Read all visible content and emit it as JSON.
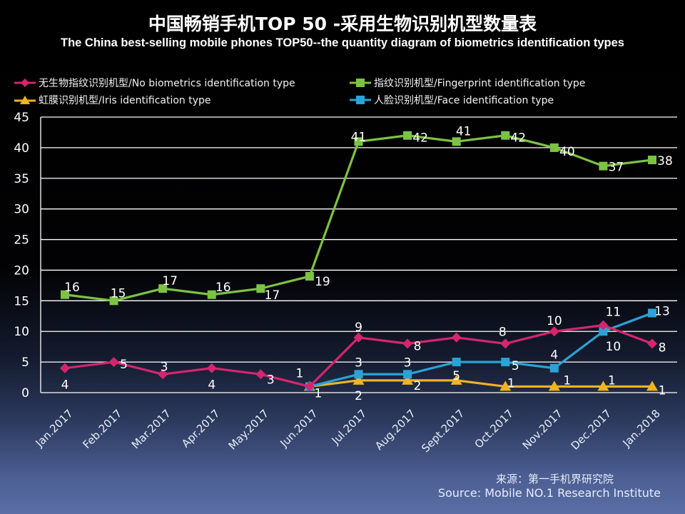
{
  "chart_data": {
    "type": "line",
    "title": "中国畅销手机TOP 50 -采用生物识别机型数量表",
    "subtitle": "The China best-selling mobile phones TOP50--the quantity diagram of biometrics identification types",
    "xlabel": "",
    "ylabel": "",
    "ylim": [
      0,
      45
    ],
    "yticks": [
      0,
      5,
      10,
      15,
      20,
      25,
      30,
      35,
      40,
      45
    ],
    "grid": true,
    "legend_position": "top",
    "categories": [
      "Jan.2017",
      "Feb.2017",
      "Mar.2017",
      "Apr.2017",
      "May.2017",
      "Jun.2017",
      "Jul.2017",
      "Aug.2017",
      "Sept.2017",
      "Oct.2017",
      "Nov.2017",
      "Dec.2017",
      "Jan.2018"
    ],
    "series": [
      {
        "name": "无生物指纹识别机型/No biometrics identification type",
        "color": "#d4266e",
        "marker": "diamond",
        "values": [
          4,
          5,
          3,
          4,
          3,
          1,
          9,
          8,
          9,
          8,
          10,
          11,
          8
        ],
        "labels": [
          "4",
          "5",
          "3",
          "4",
          "3",
          "1",
          "9",
          "8",
          "",
          "8",
          "10",
          "11",
          "8"
        ]
      },
      {
        "name": "指纹识别机型/Fingerprint identification type",
        "color": "#7cc243",
        "marker": "square",
        "values": [
          16,
          15,
          17,
          16,
          17,
          19,
          41,
          42,
          41,
          42,
          40,
          37,
          38
        ],
        "labels": [
          "16",
          "15",
          "17",
          "16",
          "17",
          "19",
          "41",
          "42",
          "41",
          "42",
          "40",
          "37",
          "38"
        ]
      },
      {
        "name": "虹膜识别机型/Iris identification type",
        "color": "#f0b323",
        "marker": "triangle",
        "values": [
          null,
          null,
          null,
          null,
          null,
          1,
          2,
          2,
          2,
          1,
          1,
          1,
          1
        ],
        "labels": [
          "",
          "",
          "",
          "",
          "",
          "1",
          "2",
          "2",
          "",
          "1",
          "1",
          "1",
          "1"
        ]
      },
      {
        "name": "人脸识别机型/Face identification type",
        "color": "#2aa3d6",
        "marker": "square",
        "values": [
          null,
          null,
          null,
          null,
          null,
          1,
          3,
          3,
          5,
          5,
          4,
          10,
          13
        ],
        "labels": [
          "",
          "",
          "",
          "",
          "",
          "",
          "3",
          "3",
          "5",
          "5",
          "4",
          "10",
          "13"
        ]
      }
    ]
  },
  "source": {
    "cn": "来源：第一手机界研究院",
    "en": "Source: Mobile NO.1 Research Institute"
  }
}
